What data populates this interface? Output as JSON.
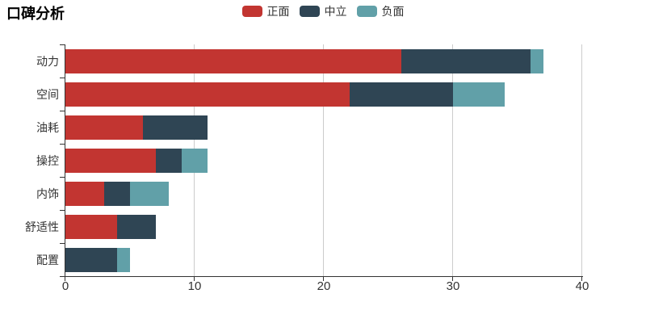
{
  "chart_data": {
    "type": "bar",
    "orientation": "horizontal",
    "stacked": true,
    "title": "口碑分析",
    "categories": [
      "动力",
      "空间",
      "油耗",
      "操控",
      "内饰",
      "舒适性",
      "配置"
    ],
    "series": [
      {
        "name": "正面",
        "color": "#c23531",
        "values": [
          26,
          22,
          6,
          7,
          3,
          4,
          0
        ]
      },
      {
        "name": "中立",
        "color": "#2f4554",
        "values": [
          10,
          8,
          5,
          2,
          2,
          3,
          4
        ]
      },
      {
        "name": "负面",
        "color": "#61a0a8",
        "values": [
          1,
          4,
          0,
          2,
          3,
          0,
          1
        ]
      }
    ],
    "totals": [
      37,
      34,
      11,
      11,
      8,
      7,
      5
    ],
    "xlim": [
      0,
      40
    ],
    "x_tick_labels": [
      "0",
      "10",
      "20",
      "30",
      "40"
    ],
    "x_tick_values": [
      0,
      10,
      20,
      30,
      40
    ],
    "grid": true,
    "legend_position": "top-center",
    "xlabel": "",
    "ylabel": ""
  },
  "colors": {
    "axis": "#333333",
    "gridline": "#cccccc",
    "text": "#333333",
    "title": "#000000",
    "background": "#ffffff"
  }
}
